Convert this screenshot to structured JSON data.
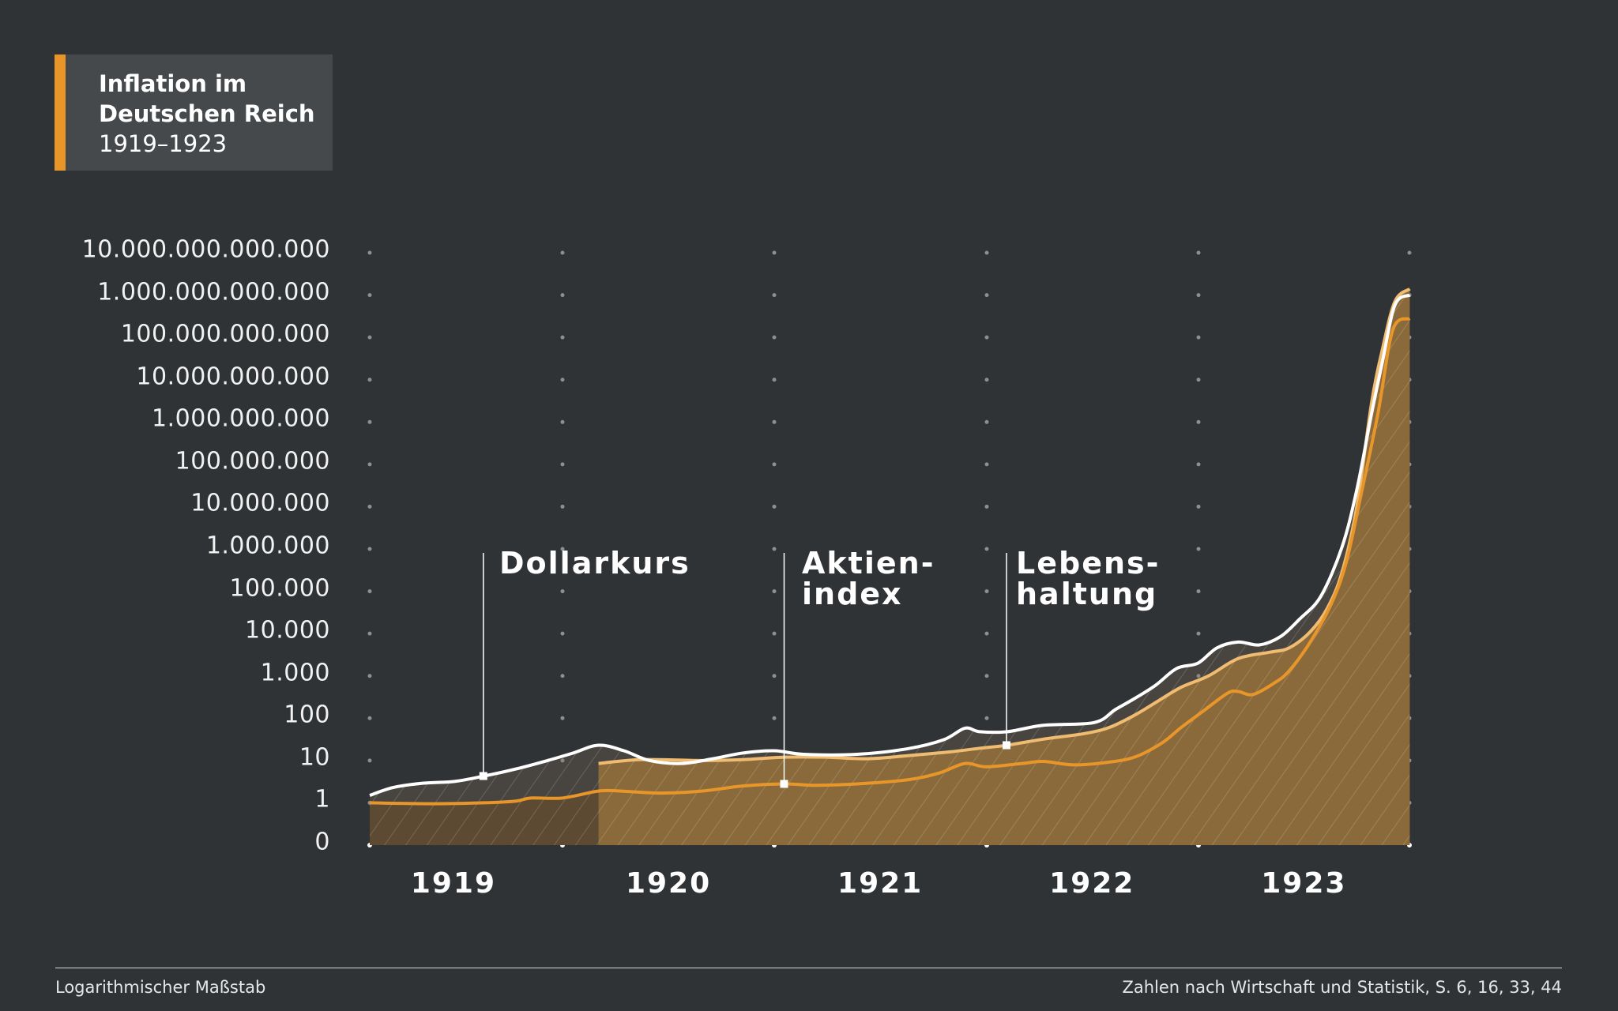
{
  "title": {
    "line1": "Inflation im",
    "line2": "Deutschen Reich",
    "line3": "1919–1923"
  },
  "footer": {
    "left": "Logarithmischer Maßstab",
    "right": "Zahlen nach Wirtschaft und Statistik, S. 6, 16, 33, 44"
  },
  "colors": {
    "background": "#2f3336",
    "dollarkurs": "#ffffff",
    "aktienindex": "#e8962a",
    "lebenshaltung": "#f0bc72",
    "fill": "#8a6a3a",
    "fill_dark": "#5c4a32",
    "accent": "#e8962a"
  },
  "chart_data": {
    "type": "line",
    "y_scale": "log",
    "ylim": [
      0,
      10000000000000
    ],
    "y_tick_labels": [
      "0",
      "1",
      "10",
      "100",
      "1.000",
      "10.000",
      "100.000",
      "1.000.000",
      "10.000.000",
      "100.000.000",
      "1.000.000.000",
      "10.000.000.000",
      "100.000.000.000",
      "1.000.000.000.000",
      "10.000.000.000.000"
    ],
    "x_tick_labels": [
      "1919",
      "1920",
      "1921",
      "1922",
      "1923"
    ],
    "grid": "dotted",
    "series": [
      {
        "name": "Dollarkurs",
        "color": "#ffffff",
        "label_lines": [
          "Dollarkurs"
        ],
        "points": [
          [
            1919.09,
            1.5
          ],
          [
            1919.2,
            2.3
          ],
          [
            1919.34,
            2.9
          ],
          [
            1919.49,
            3.2
          ],
          [
            1919.63,
            4.3
          ],
          [
            1919.78,
            6.3
          ],
          [
            1919.93,
            10
          ],
          [
            1920.05,
            15
          ],
          [
            1920.17,
            23
          ],
          [
            1920.29,
            17
          ],
          [
            1920.41,
            10
          ],
          [
            1920.56,
            8.5
          ],
          [
            1920.71,
            11
          ],
          [
            1920.85,
            15
          ],
          [
            1921.0,
            17
          ],
          [
            1921.14,
            14
          ],
          [
            1921.39,
            14
          ],
          [
            1921.63,
            19
          ],
          [
            1921.8,
            31
          ],
          [
            1921.9,
            58
          ],
          [
            1921.97,
            48
          ],
          [
            1922.1,
            48
          ],
          [
            1922.27,
            68
          ],
          [
            1922.51,
            79
          ],
          [
            1922.61,
            160
          ],
          [
            1922.7,
            290
          ],
          [
            1922.8,
            600
          ],
          [
            1922.9,
            1500
          ],
          [
            1923.0,
            2000
          ],
          [
            1923.09,
            4600
          ],
          [
            1923.19,
            6300
          ],
          [
            1923.29,
            5400
          ],
          [
            1923.39,
            8500
          ],
          [
            1923.48,
            22000
          ],
          [
            1923.58,
            76000
          ],
          [
            1923.68,
            1100000
          ],
          [
            1923.75,
            25000000
          ],
          [
            1923.82,
            1600000000
          ],
          [
            1923.87,
            25000000000
          ],
          [
            1923.93,
            580000000000
          ],
          [
            1924.0,
            1000000000000
          ]
        ]
      },
      {
        "name": "Aktienindex",
        "color": "#e8962a",
        "label_lines": [
          "Aktien-",
          "index"
        ],
        "points": [
          [
            1919.09,
            1
          ],
          [
            1919.39,
            0.95
          ],
          [
            1919.63,
            1
          ],
          [
            1919.78,
            1.1
          ],
          [
            1919.85,
            1.3
          ],
          [
            1920.0,
            1.3
          ],
          [
            1920.17,
            1.9
          ],
          [
            1920.27,
            1.9
          ],
          [
            1920.46,
            1.7
          ],
          [
            1920.66,
            1.9
          ],
          [
            1920.85,
            2.5
          ],
          [
            1921.05,
            2.8
          ],
          [
            1921.19,
            2.6
          ],
          [
            1921.39,
            2.8
          ],
          [
            1921.63,
            3.5
          ],
          [
            1921.78,
            5.1
          ],
          [
            1921.9,
            8.5
          ],
          [
            1922.0,
            7.1
          ],
          [
            1922.17,
            8.5
          ],
          [
            1922.27,
            9.5
          ],
          [
            1922.41,
            7.9
          ],
          [
            1922.56,
            8.9
          ],
          [
            1922.7,
            12
          ],
          [
            1922.83,
            26
          ],
          [
            1922.92,
            60
          ],
          [
            1923.02,
            141
          ],
          [
            1923.14,
            390
          ],
          [
            1923.19,
            427
          ],
          [
            1923.26,
            363
          ],
          [
            1923.36,
            676
          ],
          [
            1923.43,
            1300
          ],
          [
            1923.53,
            6300
          ],
          [
            1923.63,
            51000
          ],
          [
            1923.7,
            480000
          ],
          [
            1923.77,
            19000000
          ],
          [
            1923.85,
            1600000000
          ],
          [
            1923.92,
            150000000000
          ],
          [
            1924.0,
            280000000000
          ]
        ]
      },
      {
        "name": "Lebenshaltung",
        "color": "#f0bc72",
        "label_lines": [
          "Lebens-",
          "haltung"
        ],
        "points": [
          [
            1920.17,
            8.5
          ],
          [
            1920.37,
            10.5
          ],
          [
            1920.66,
            10
          ],
          [
            1920.85,
            10.5
          ],
          [
            1921.05,
            12
          ],
          [
            1921.24,
            12
          ],
          [
            1921.44,
            11
          ],
          [
            1921.63,
            13
          ],
          [
            1921.83,
            16
          ],
          [
            1921.97,
            19.5
          ],
          [
            1922.1,
            23
          ],
          [
            1922.27,
            32
          ],
          [
            1922.46,
            43
          ],
          [
            1922.58,
            60
          ],
          [
            1922.7,
            117
          ],
          [
            1922.8,
            234
          ],
          [
            1922.92,
            537
          ],
          [
            1923.05,
            1000
          ],
          [
            1923.19,
            2570
          ],
          [
            1923.34,
            3630
          ],
          [
            1923.43,
            4570
          ],
          [
            1923.53,
            11000
          ],
          [
            1923.61,
            39000
          ],
          [
            1923.68,
            280000
          ],
          [
            1923.75,
            10000000
          ],
          [
            1923.82,
            2900000000
          ],
          [
            1923.87,
            50000000000
          ],
          [
            1923.93,
            710000000000
          ],
          [
            1924.0,
            1400000000000
          ]
        ]
      }
    ]
  }
}
